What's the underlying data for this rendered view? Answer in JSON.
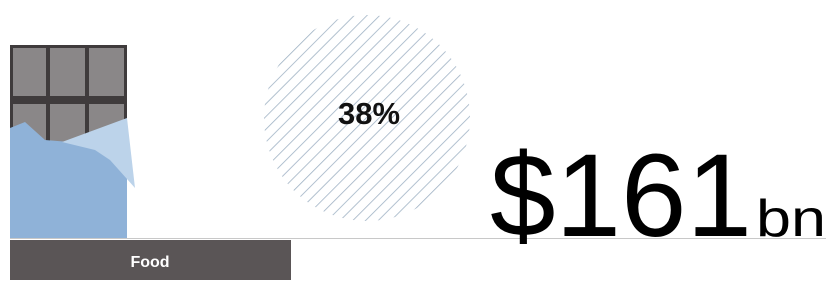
{
  "category": "Food",
  "share": "38%",
  "amount": "$161",
  "unit": "bn"
}
